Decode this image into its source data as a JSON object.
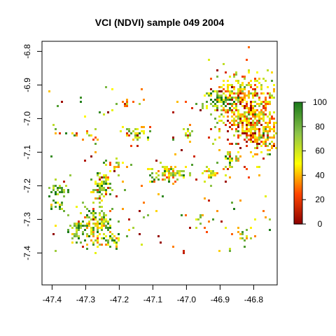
{
  "chart_data": {
    "type": "heatmap",
    "title": "VCI (NDVI) sample 049 2004",
    "xlabel": "",
    "ylabel": "",
    "xlim": [
      -47.43,
      -46.73
    ],
    "ylim": [
      -7.495,
      -6.77
    ],
    "x_ticks": [
      -47.4,
      -47.3,
      -47.2,
      -47.1,
      -47.0,
      -46.9,
      -46.8
    ],
    "x_tick_labels": [
      "-47.4",
      "-47.3",
      "-47.2",
      "-47.1",
      "-47.0",
      "-46.9",
      "-46.8"
    ],
    "y_ticks": [
      -6.8,
      -6.9,
      -7.0,
      -7.1,
      -7.2,
      -7.3,
      -7.4
    ],
    "y_tick_labels": [
      "-6.8",
      "-6.9",
      "-7.0",
      "-7.1",
      "-7.2",
      "-7.3",
      "-7.4"
    ],
    "colorbar": {
      "range": [
        0,
        100
      ],
      "ticks": [
        0,
        20,
        40,
        60,
        80,
        100
      ],
      "tick_labels": [
        "0",
        "20",
        "40",
        "60",
        "80",
        "100"
      ],
      "colors": [
        "#8b0000",
        "#ff4500",
        "#ffff00",
        "#8bc34a",
        "#1b7a1b"
      ]
    },
    "grid": false,
    "patches": [
      {
        "lon": -46.84,
        "lat": -6.96,
        "rx": 0.09,
        "ry": 0.1,
        "n": 420,
        "mean": 45
      },
      {
        "lon": -46.8,
        "lat": -7.02,
        "rx": 0.06,
        "ry": 0.08,
        "n": 220,
        "mean": 40
      },
      {
        "lon": -46.9,
        "lat": -6.94,
        "rx": 0.04,
        "ry": 0.03,
        "n": 70,
        "mean": 80
      },
      {
        "lon": -46.87,
        "lat": -7.12,
        "rx": 0.03,
        "ry": 0.02,
        "n": 30,
        "mean": 65
      },
      {
        "lon": -46.76,
        "lat": -7.05,
        "rx": 0.03,
        "ry": 0.04,
        "n": 40,
        "mean": 55
      },
      {
        "lon": -47.27,
        "lat": -7.31,
        "rx": 0.05,
        "ry": 0.05,
        "n": 140,
        "mean": 62
      },
      {
        "lon": -47.33,
        "lat": -7.33,
        "rx": 0.03,
        "ry": 0.03,
        "n": 45,
        "mean": 80
      },
      {
        "lon": -47.26,
        "lat": -7.2,
        "rx": 0.03,
        "ry": 0.04,
        "n": 75,
        "mean": 68
      },
      {
        "lon": -47.23,
        "lat": -7.36,
        "rx": 0.03,
        "ry": 0.02,
        "n": 30,
        "mean": 60
      },
      {
        "lon": -47.38,
        "lat": -7.21,
        "rx": 0.025,
        "ry": 0.02,
        "n": 30,
        "mean": 85
      },
      {
        "lon": -47.05,
        "lat": -7.16,
        "rx": 0.07,
        "ry": 0.025,
        "n": 80,
        "mean": 62
      },
      {
        "lon": -46.93,
        "lat": -7.16,
        "rx": 0.03,
        "ry": 0.02,
        "n": 25,
        "mean": 60
      },
      {
        "lon": -47.15,
        "lat": -7.04,
        "rx": 0.04,
        "ry": 0.02,
        "n": 30,
        "mean": 55
      },
      {
        "lon": -47.0,
        "lat": -7.04,
        "rx": 0.02,
        "ry": 0.02,
        "n": 12,
        "mean": 70
      },
      {
        "lon": -47.18,
        "lat": -6.95,
        "rx": 0.02,
        "ry": 0.015,
        "n": 8,
        "mean": 35
      },
      {
        "lon": -47.22,
        "lat": -7.14,
        "rx": 0.03,
        "ry": 0.03,
        "n": 20,
        "mean": 55
      },
      {
        "lon": -47.3,
        "lat": -7.05,
        "rx": 0.03,
        "ry": 0.02,
        "n": 14,
        "mean": 50
      },
      {
        "lon": -46.82,
        "lat": -7.34,
        "rx": 0.03,
        "ry": 0.03,
        "n": 14,
        "mean": 55
      },
      {
        "lon": -47.38,
        "lat": -7.26,
        "rx": 0.03,
        "ry": 0.02,
        "n": 12,
        "mean": 85
      },
      {
        "lon": -46.96,
        "lat": -7.3,
        "rx": 0.03,
        "ry": 0.02,
        "n": 8,
        "mean": 65
      }
    ],
    "scatter_pixels": 170
  }
}
